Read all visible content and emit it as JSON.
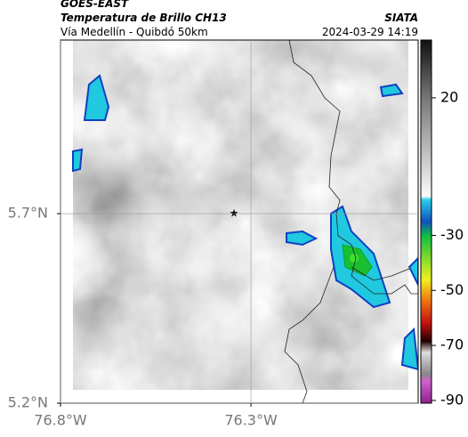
{
  "header": {
    "source": "GOES-EAST",
    "title": "Temperatura de Brillo CH13",
    "subtitle": "Vía Medellín - Quibdó 50km",
    "agency": "SIATA",
    "datetime": "2024-03-29 14:19"
  },
  "map": {
    "xlim": [
      -76.8,
      -75.861
    ],
    "ylim": [
      5.2,
      6.158
    ],
    "xticks": [
      {
        "value": -76.8,
        "label": "76.8°W"
      },
      {
        "value": -76.3,
        "label": "76.3°W"
      }
    ],
    "yticks": [
      {
        "value": 5.2,
        "label": "5.2°N"
      },
      {
        "value": 5.7,
        "label": "5.7°N"
      }
    ]
  },
  "colorbar": {
    "lim": [
      41,
      -91
    ],
    "ticks": [
      20,
      -30,
      -50,
      -70,
      -90
    ]
  }
}
